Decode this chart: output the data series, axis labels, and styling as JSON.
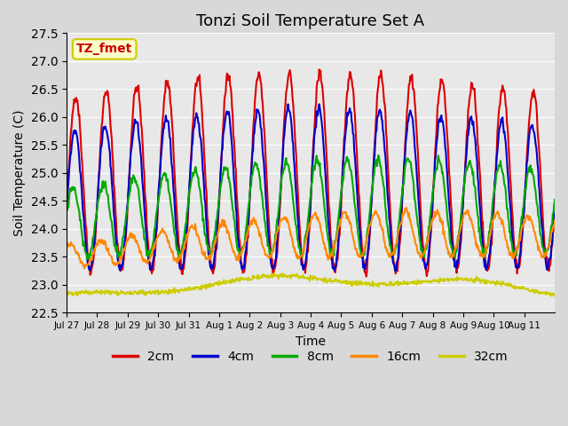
{
  "title": "Tonzi Soil Temperature Set A",
  "xlabel": "Time",
  "ylabel": "Soil Temperature (C)",
  "ylim": [
    22.5,
    27.5
  ],
  "yticks": [
    22.5,
    23.0,
    23.5,
    24.0,
    24.5,
    25.0,
    25.5,
    26.0,
    26.5,
    27.0,
    27.5
  ],
  "xtick_labels": [
    "Jul 27",
    "Jul 28",
    "Jul 29",
    "Jul 30",
    "Jul 31",
    "Aug 1",
    "Aug 2",
    "Aug 3",
    "Aug 4",
    "Aug 5",
    "Aug 6",
    "Aug 7",
    "Aug 8",
    "Aug 9",
    "Aug 10",
    "Aug 11"
  ],
  "legend_labels": [
    "2cm",
    "4cm",
    "8cm",
    "16cm",
    "32cm"
  ],
  "legend_colors": [
    "#dd0000",
    "#0000cc",
    "#00aa00",
    "#ff8800",
    "#cccc00"
  ],
  "annotation_text": "TZ_fmet",
  "annotation_bg": "#ffffcc",
  "annotation_border": "#cccc00",
  "fig_bg": "#d8d8d8",
  "plot_bg": "#e8e8e8",
  "line_width": 1.5,
  "title_fontsize": 13,
  "n_days": 16,
  "pts_per_day": 48
}
